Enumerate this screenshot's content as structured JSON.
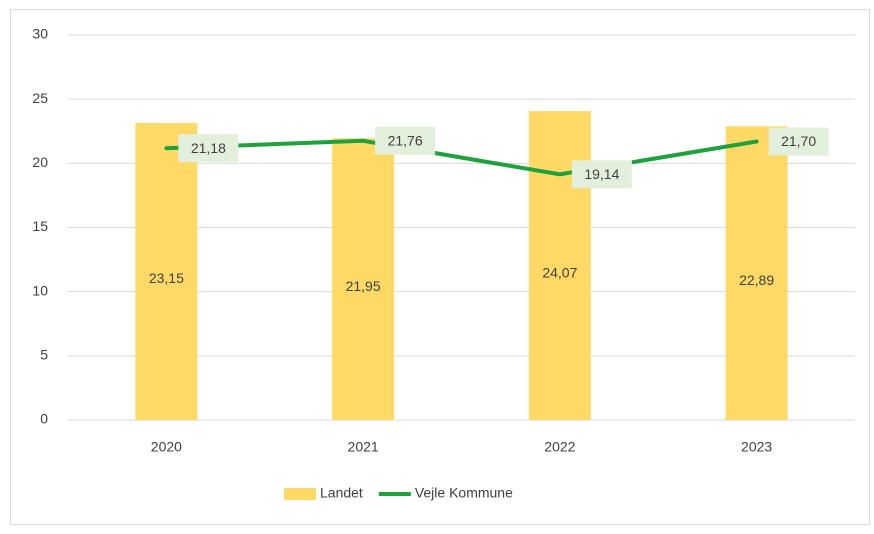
{
  "chart_data": {
    "type": "bar",
    "categories": [
      "2020",
      "2021",
      "2022",
      "2023"
    ],
    "series": [
      {
        "name": "Landet",
        "type": "bar",
        "color": "#ffd966",
        "values": [
          23.15,
          21.95,
          24.07,
          22.89
        ],
        "value_labels": [
          "23,15",
          "21,95",
          "24,07",
          "22,89"
        ]
      },
      {
        "name": "Vejle Kommune",
        "type": "line",
        "color": "#1ea33c",
        "values": [
          21.18,
          21.76,
          19.14,
          21.7
        ],
        "value_labels": [
          "21,18",
          "21,76",
          "19,14",
          "21,70"
        ]
      }
    ],
    "ylim": [
      0,
      30
    ],
    "yticks": [
      0,
      5,
      10,
      15,
      20,
      25,
      30
    ],
    "grid": true,
    "legend": "bottom"
  }
}
